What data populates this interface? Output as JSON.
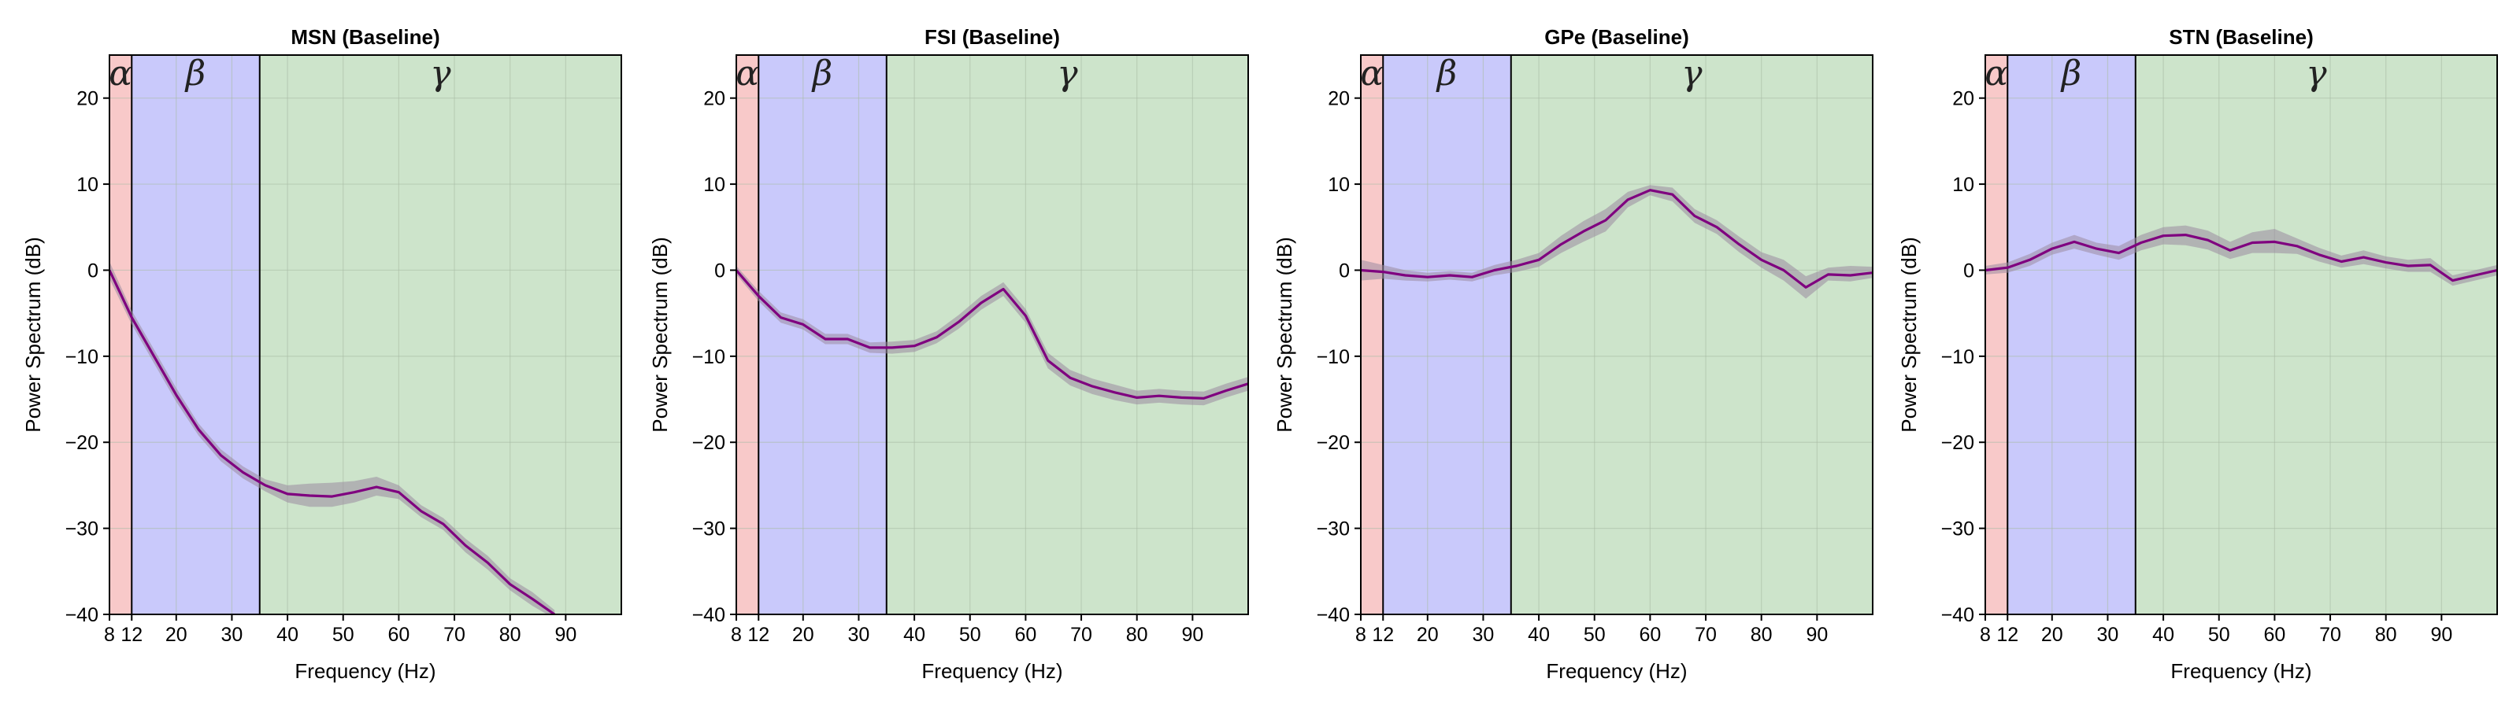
{
  "colors": {
    "alpha_band": "#f8c9c9",
    "beta_band": "#c9c9fb",
    "gamma_band": "#cde4cb",
    "line": "#7f007f",
    "ci": "#9a8aa0",
    "grid": "#a9bca6"
  },
  "chart_data": [
    {
      "type": "line",
      "title": "MSN (Baseline)",
      "xlabel": "Frequency (Hz)",
      "ylabel": "Power Spectrum (dB)",
      "xlim": [
        8,
        100
      ],
      "ylim": [
        -40,
        25
      ],
      "xticks": [
        "8",
        "12",
        "20",
        "30",
        "40",
        "50",
        "60",
        "70",
        "80",
        "90"
      ],
      "yticks": [
        "20",
        "10",
        "0",
        "−10",
        "−20",
        "−30",
        "−40"
      ],
      "grid": true,
      "bands": [
        {
          "label": "α",
          "from": 8,
          "to": 12
        },
        {
          "label": "β",
          "from": 12,
          "to": 35
        },
        {
          "label": "γ",
          "from": 35,
          "to": 100
        }
      ],
      "x": [
        8,
        12,
        16,
        20,
        24,
        28,
        32,
        36,
        40,
        44,
        48,
        52,
        56,
        60,
        64,
        68,
        72,
        76,
        80,
        84,
        88
      ],
      "y": [
        0,
        -5.5,
        -10,
        -14.5,
        -18.5,
        -21.5,
        -23.5,
        -25,
        -26,
        -26.2,
        -26.3,
        -25.8,
        -25.2,
        -25.8,
        -28,
        -29.5,
        -32,
        -34,
        -36.5,
        -38.2,
        -40
      ],
      "ci_lower": [
        -1,
        -6.3,
        -10.8,
        -15.3,
        -19.2,
        -22.2,
        -24.2,
        -25.7,
        -27,
        -27.5,
        -27.5,
        -27,
        -26.2,
        -26.6,
        -28.7,
        -30.2,
        -32.8,
        -34.8,
        -37.2,
        -39,
        -40.5
      ],
      "ci_upper": [
        1,
        -4.7,
        -9.2,
        -13.7,
        -17.8,
        -20.8,
        -22.8,
        -24.3,
        -25,
        -24.8,
        -24.7,
        -24.5,
        -24,
        -25,
        -27.3,
        -28.8,
        -31.2,
        -33.2,
        -35.8,
        -37.4,
        -39.5
      ]
    },
    {
      "type": "line",
      "title": "FSI (Baseline)",
      "xlabel": "Frequency (Hz)",
      "ylabel": "Power Spectrum (dB)",
      "xlim": [
        8,
        100
      ],
      "ylim": [
        -40,
        25
      ],
      "xticks": [
        "8",
        "12",
        "20",
        "30",
        "40",
        "50",
        "60",
        "70",
        "80",
        "90"
      ],
      "yticks": [
        "20",
        "10",
        "0",
        "−10",
        "−20",
        "−30",
        "−40"
      ],
      "grid": true,
      "bands": [
        {
          "label": "α",
          "from": 8,
          "to": 12
        },
        {
          "label": "β",
          "from": 12,
          "to": 35
        },
        {
          "label": "γ",
          "from": 35,
          "to": 100
        }
      ],
      "x": [
        8,
        12,
        16,
        20,
        24,
        28,
        32,
        36,
        40,
        44,
        48,
        52,
        56,
        60,
        64,
        68,
        72,
        76,
        80,
        84,
        88,
        92,
        96,
        100
      ],
      "y": [
        0,
        -3,
        -5.5,
        -6.3,
        -8,
        -8,
        -9,
        -9,
        -8.8,
        -7.8,
        -6,
        -3.8,
        -2.2,
        -5.3,
        -10.5,
        -12.5,
        -13.5,
        -14.2,
        -14.8,
        -14.6,
        -14.8,
        -14.9,
        -14,
        -13.2
      ],
      "ci_lower": [
        -0.5,
        -3.6,
        -6.1,
        -6.9,
        -8.6,
        -8.6,
        -9.6,
        -9.7,
        -9.5,
        -8.5,
        -6.8,
        -4.6,
        -3,
        -6.1,
        -11.4,
        -13.4,
        -14.4,
        -15.1,
        -15.6,
        -15.4,
        -15.6,
        -15.7,
        -14.8,
        -14
      ],
      "ci_upper": [
        0.5,
        -2.4,
        -4.9,
        -5.7,
        -7.4,
        -7.4,
        -8.4,
        -8.3,
        -8.1,
        -7.1,
        -5.2,
        -3,
        -1.4,
        -4.5,
        -9.6,
        -11.6,
        -12.6,
        -13.3,
        -14,
        -13.8,
        -14,
        -14.1,
        -13.2,
        -12.4
      ]
    },
    {
      "type": "line",
      "title": "GPe (Baseline)",
      "xlabel": "Frequency (Hz)",
      "ylabel": "Power Spectrum (dB)",
      "xlim": [
        8,
        100
      ],
      "ylim": [
        -40,
        25
      ],
      "xticks": [
        "8",
        "12",
        "20",
        "30",
        "40",
        "50",
        "60",
        "70",
        "80",
        "90"
      ],
      "yticks": [
        "20",
        "10",
        "0",
        "−10",
        "−20",
        "−30",
        "−40"
      ],
      "grid": true,
      "bands": [
        {
          "label": "α",
          "from": 8,
          "to": 12
        },
        {
          "label": "β",
          "from": 12,
          "to": 35
        },
        {
          "label": "γ",
          "from": 35,
          "to": 100
        }
      ],
      "x": [
        8,
        12,
        16,
        20,
        24,
        28,
        32,
        36,
        40,
        44,
        48,
        52,
        56,
        60,
        64,
        68,
        72,
        76,
        80,
        84,
        88,
        92,
        96,
        100
      ],
      "y": [
        0,
        -0.2,
        -0.6,
        -0.8,
        -0.6,
        -0.8,
        0,
        0.5,
        1.2,
        3,
        4.5,
        5.8,
        8.2,
        9.3,
        8.8,
        6.3,
        5,
        3,
        1.2,
        0,
        -2,
        -0.5,
        -0.6,
        -0.3
      ],
      "ci_lower": [
        -1.2,
        -1,
        -1.2,
        -1.3,
        -1.1,
        -1.3,
        -0.6,
        -0.2,
        0.4,
        2,
        3.3,
        4.5,
        7.3,
        8.7,
        8,
        5.5,
        4.2,
        2.1,
        0.3,
        -1.2,
        -3.3,
        -1.2,
        -1.3,
        -0.9
      ],
      "ci_upper": [
        1.2,
        0.6,
        0,
        -0.3,
        -0.1,
        -0.3,
        0.6,
        1.2,
        2,
        4,
        5.7,
        7.1,
        9.1,
        9.9,
        9.6,
        7.1,
        5.8,
        3.9,
        2.1,
        1.2,
        -0.7,
        0.3,
        0.5,
        0.4
      ]
    },
    {
      "type": "line",
      "title": "STN (Baseline)",
      "xlabel": "Frequency (Hz)",
      "ylabel": "Power Spectrum (dB)",
      "xlim": [
        8,
        100
      ],
      "ylim": [
        -40,
        25
      ],
      "xticks": [
        "8",
        "12",
        "20",
        "30",
        "40",
        "50",
        "60",
        "70",
        "80",
        "90"
      ],
      "yticks": [
        "20",
        "10",
        "0",
        "−10",
        "−20",
        "−30",
        "−40"
      ],
      "grid": true,
      "bands": [
        {
          "label": "α",
          "from": 8,
          "to": 12
        },
        {
          "label": "β",
          "from": 12,
          "to": 35
        },
        {
          "label": "γ",
          "from": 35,
          "to": 100
        }
      ],
      "x": [
        8,
        12,
        16,
        20,
        24,
        28,
        32,
        36,
        40,
        44,
        48,
        52,
        56,
        60,
        64,
        68,
        72,
        76,
        80,
        84,
        88,
        92,
        96,
        100
      ],
      "y": [
        0,
        0.3,
        1.2,
        2.5,
        3.3,
        2.5,
        2,
        3.2,
        4,
        4.1,
        3.5,
        2.3,
        3.2,
        3.3,
        2.8,
        1.8,
        1,
        1.5,
        0.9,
        0.5,
        0.6,
        -1.2,
        -0.6,
        0
      ],
      "ci_lower": [
        -0.5,
        -0.3,
        0.5,
        1.8,
        2.5,
        1.8,
        1.2,
        2.3,
        3,
        2.9,
        2.4,
        1.3,
        2,
        2,
        1.9,
        1,
        0.3,
        0.7,
        0.2,
        -0.2,
        -0.2,
        -1.8,
        -1.2,
        -0.6
      ],
      "ci_upper": [
        0.5,
        0.9,
        1.9,
        3.2,
        4.1,
        3.2,
        2.8,
        4.1,
        5,
        5.2,
        4.6,
        3.3,
        4.4,
        4.8,
        3.7,
        2.6,
        1.7,
        2.3,
        1.6,
        1.2,
        1.4,
        -0.6,
        0,
        0.6
      ]
    }
  ]
}
